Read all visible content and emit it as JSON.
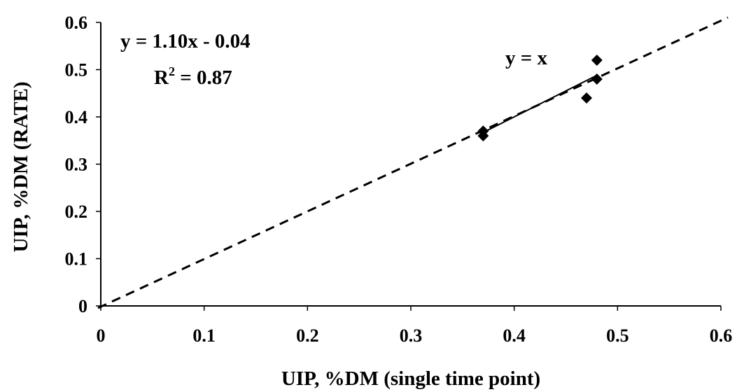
{
  "chart_data": {
    "type": "scatter",
    "xlabel": "UIP, %DM (single time point)",
    "ylabel": "UIP, %DM (RATE)",
    "xlim": [
      0,
      0.6
    ],
    "ylim": [
      0,
      0.6
    ],
    "x_ticks": [
      "0",
      "0.1",
      "0.2",
      "0.3",
      "0.4",
      "0.5",
      "0.6"
    ],
    "y_ticks": [
      "0",
      "0.1",
      "0.2",
      "0.3",
      "0.4",
      "0.5",
      "0.6"
    ],
    "grid": false,
    "series": [
      {
        "marker": "diamond",
        "color": "#000000",
        "points": [
          {
            "x": 0.37,
            "y": 0.37
          },
          {
            "x": 0.37,
            "y": 0.36
          },
          {
            "x": 0.47,
            "y": 0.44
          },
          {
            "x": 0.48,
            "y": 0.48
          },
          {
            "x": 0.48,
            "y": 0.52
          }
        ]
      }
    ],
    "regression_line": {
      "style": "solid",
      "x_range": [
        0.37,
        0.48
      ],
      "slope": 1.1,
      "intercept": -0.04
    },
    "identity_line": {
      "style": "dashed",
      "x_range": [
        0,
        0.6
      ]
    },
    "annotations": {
      "equation": "y = 1.10x - 0.04",
      "r2_prefix": "R",
      "r2_superscript": "2",
      "r2_suffix": " = 0.87",
      "identity_label": "y = x"
    }
  }
}
